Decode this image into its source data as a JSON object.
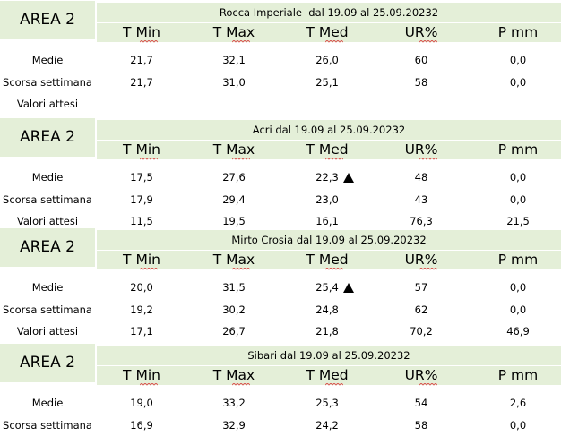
{
  "columns": [
    "T Min",
    "T Max",
    "T Med",
    "UR%",
    "P mm"
  ],
  "blocks": [
    {
      "area": "AREA 2",
      "title": "Rocca Imperiale  dal 19.09 al 25.09.20232",
      "rows": [
        {
          "label": "Medie",
          "values": [
            "21,7",
            "32,1",
            "26,0",
            "60",
            "0,0"
          ]
        },
        {
          "label": "Scorsa settimana",
          "values": [
            "21,7",
            "31,0",
            "25,1",
            "58",
            "0,0"
          ]
        },
        {
          "label": "Valori attesi",
          "values": [
            "",
            "",
            "",
            "",
            ""
          ]
        }
      ]
    },
    {
      "area": "AREA 2",
      "title": "Acri dal 19.09 al 25.09.20232",
      "rows": [
        {
          "label": "Medie",
          "values": [
            "17,5",
            "27,6",
            "22,3",
            "48",
            "0,0"
          ]
        },
        {
          "label": "Scorsa settimana",
          "values": [
            "17,9",
            "29,4",
            "23,0",
            "43",
            "0,0"
          ]
        },
        {
          "label": "Valori attesi",
          "values": [
            "11,5",
            "19,5",
            "16,1",
            "76,3",
            "21,5"
          ]
        }
      ]
    },
    {
      "area": "AREA 2",
      "title": "Mirto Crosia dal 19.09 al 25.09.20232",
      "rows": [
        {
          "label": "Medie",
          "values": [
            "20,0",
            "31,5",
            "25,4",
            "57",
            "0,0"
          ]
        },
        {
          "label": "Scorsa settimana",
          "values": [
            "19,2",
            "30,2",
            "24,8",
            "62",
            "0,0"
          ]
        },
        {
          "label": "Valori attesi",
          "values": [
            "17,1",
            "26,7",
            "21,8",
            "70,2",
            "46,9"
          ]
        }
      ]
    },
    {
      "area": "AREA 2",
      "title": "Sibari dal 19.09 al 25.09.20232",
      "rows": [
        {
          "label": "Medie",
          "values": [
            "19,0",
            "33,2",
            "25,3",
            "54",
            "2,6"
          ]
        },
        {
          "label": "Scorsa settimana",
          "values": [
            "16,9",
            "32,9",
            "24,2",
            "58",
            "0,0"
          ]
        }
      ]
    }
  ],
  "indicators": [
    {
      "block": 1,
      "row": 0,
      "icon": "up-triangle-icon"
    },
    {
      "block": 2,
      "row": 0,
      "icon": "up-triangle-icon"
    }
  ]
}
